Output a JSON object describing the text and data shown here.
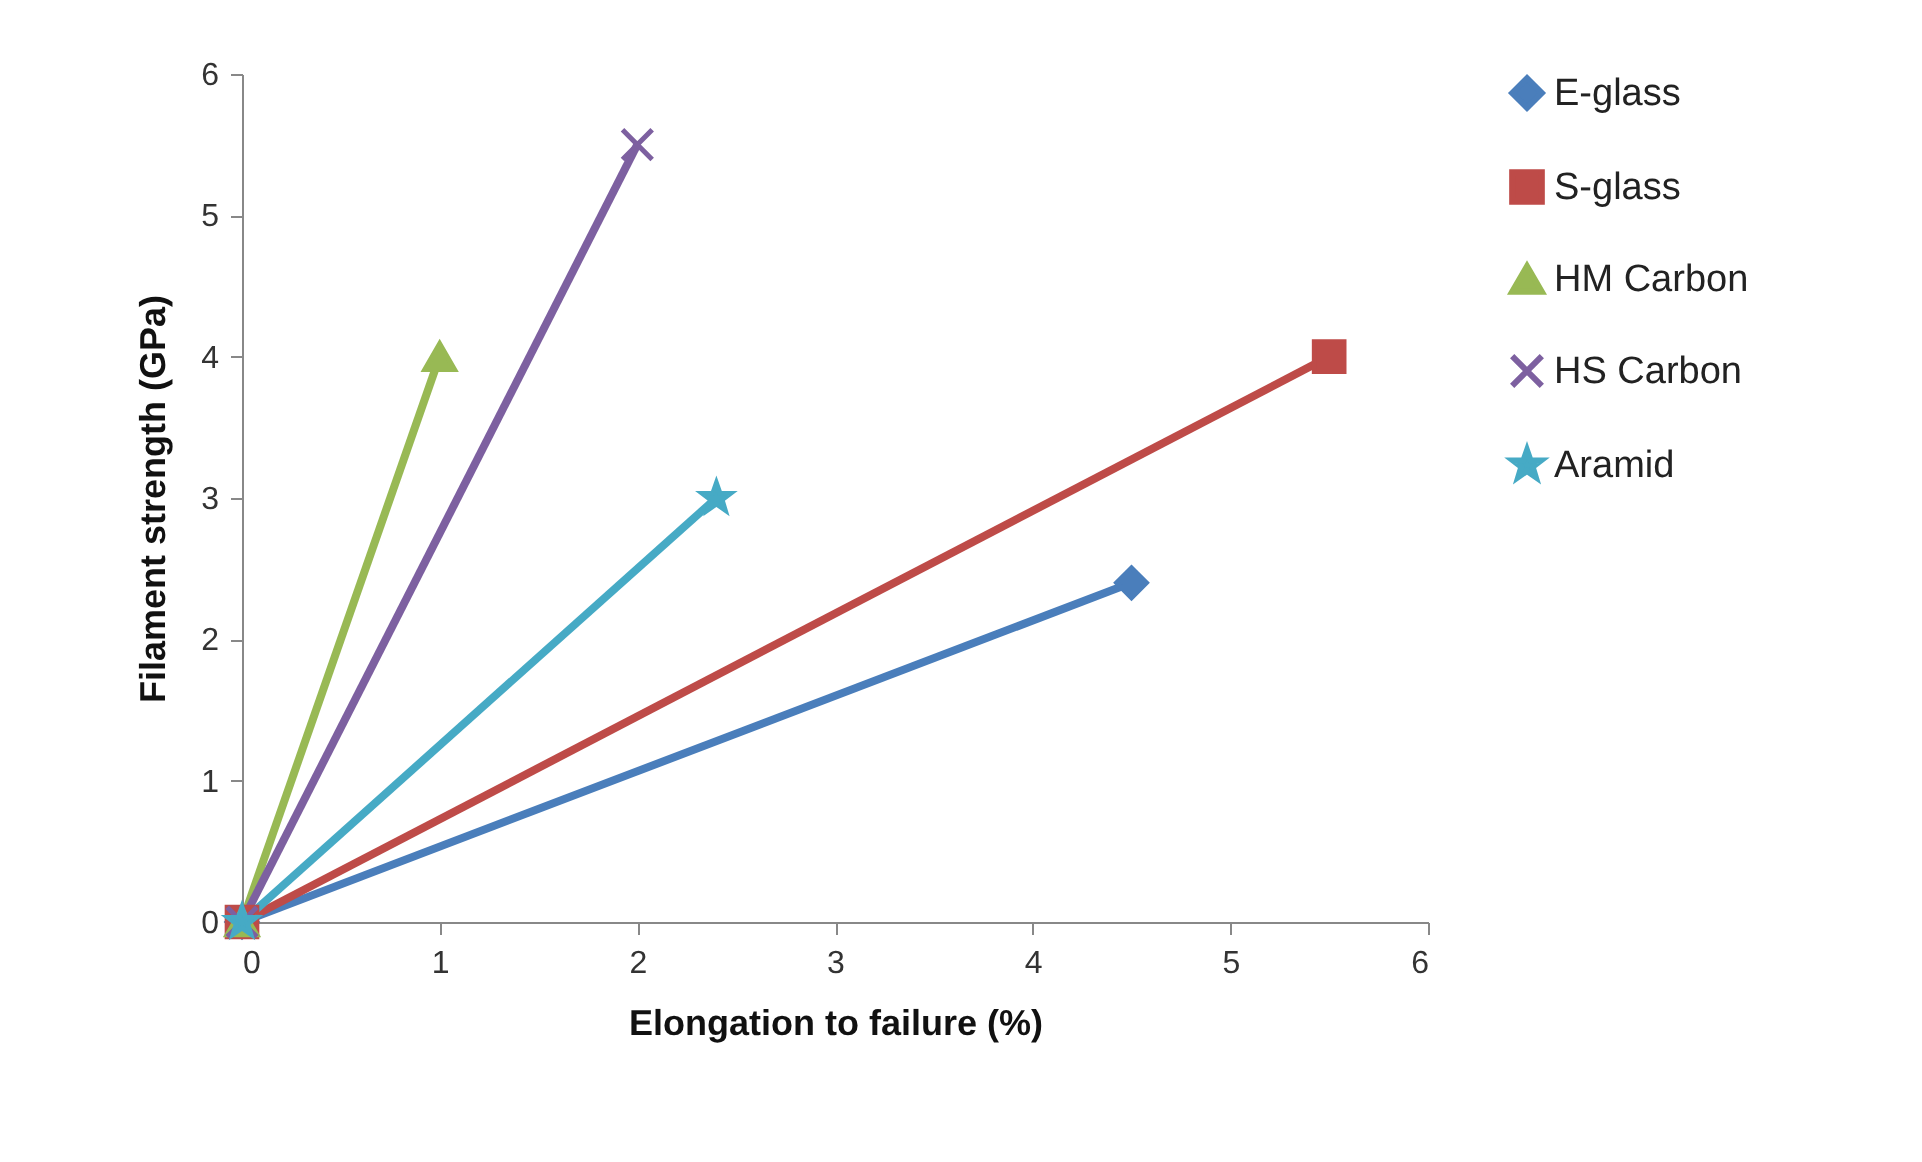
{
  "chart_data": {
    "type": "line",
    "xlabel": "Elongation to failure (%)",
    "ylabel": "Filament strength (GPa)",
    "series": [
      {
        "name": "E-glass",
        "color": "#4a7ebb",
        "marker": "diamond",
        "x": [
          0,
          4.5
        ],
        "values": [
          0,
          2.4
        ]
      },
      {
        "name": "S-glass",
        "color": "#be4b48",
        "marker": "square",
        "x": [
          0,
          5.5
        ],
        "values": [
          0,
          4
        ]
      },
      {
        "name": "HM Carbon",
        "color": "#98b954",
        "marker": "triangle",
        "x": [
          0,
          1
        ],
        "values": [
          0,
          4
        ]
      },
      {
        "name": "HS Carbon",
        "color": "#7d60a0",
        "marker": "cross",
        "x": [
          0,
          2
        ],
        "values": [
          0,
          5.5
        ]
      },
      {
        "name": "Aramid",
        "color": "#46aac5",
        "marker": "star",
        "x": [
          0,
          2.4
        ],
        "values": [
          0,
          3
        ]
      }
    ],
    "xlim": [
      0,
      6
    ],
    "xticks": [
      0,
      1,
      2,
      3,
      4,
      5,
      6
    ],
    "ylim": [
      0,
      6
    ],
    "yticks": [
      0,
      1,
      2,
      3,
      4,
      5,
      6
    ],
    "grid": false,
    "legend": "right",
    "line_style": "solid"
  }
}
